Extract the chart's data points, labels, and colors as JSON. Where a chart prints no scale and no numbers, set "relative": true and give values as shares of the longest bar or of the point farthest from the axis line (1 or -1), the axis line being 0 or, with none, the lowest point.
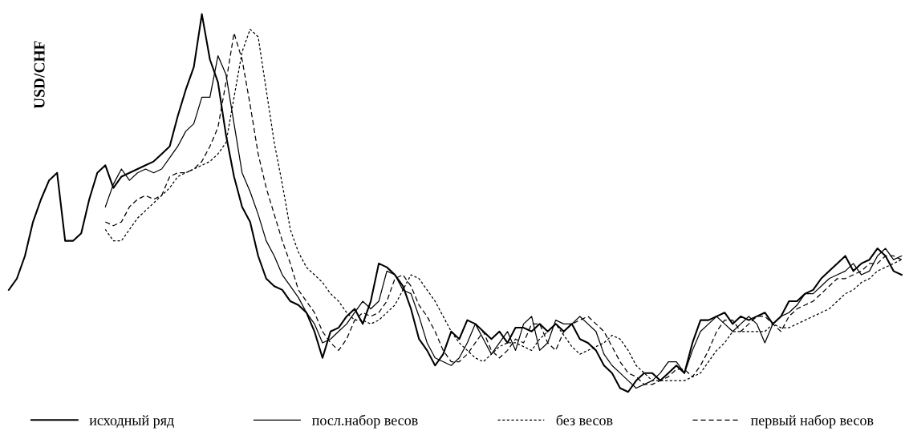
{
  "chart_data": {
    "type": "line",
    "relative": true,
    "ylabel": "USD/CHF",
    "legend": "bottom",
    "marker": "none",
    "categories": [
      null,
      null,
      null,
      null,
      null,
      null,
      null,
      null,
      null,
      null,
      null,
      null,
      null,
      null,
      null,
      null,
      null,
      null,
      null,
      null,
      null,
      null,
      null,
      null,
      null,
      null,
      null,
      null,
      null,
      null,
      null,
      null,
      null,
      null,
      null,
      null,
      null,
      null,
      null,
      null,
      null,
      null,
      null,
      null,
      null,
      null,
      null,
      null,
      null,
      null,
      null,
      null,
      null,
      null,
      null,
      null,
      null,
      null,
      null,
      null,
      null,
      null,
      null,
      null,
      null,
      null,
      null,
      null,
      null,
      null,
      null,
      null,
      null,
      null,
      null,
      null,
      null,
      null,
      null,
      null,
      null,
      null,
      null,
      null,
      null,
      null,
      null,
      null,
      null,
      null,
      null,
      null,
      null,
      null,
      null,
      null,
      null,
      null,
      null,
      null,
      null,
      null,
      null,
      null,
      null,
      null,
      null,
      null,
      null,
      null,
      null,
      null
    ],
    "series": [
      {
        "name": "исходный ряд",
        "color": "#000000",
        "line_style": "solid",
        "values": [
          0.27,
          0.3,
          0.36,
          0.45,
          0.51,
          0.56,
          0.58,
          0.4,
          0.4,
          0.42,
          0.51,
          0.58,
          0.6,
          0.54,
          0.57,
          0.58,
          0.59,
          0.6,
          0.61,
          0.63,
          0.65,
          0.73,
          0.8,
          0.86,
          1,
          0.88,
          0.82,
          0.68,
          0.57,
          0.49,
          0.45,
          0.36,
          0.3,
          0.28,
          0.27,
          0.24,
          0.23,
          0.21,
          0.16,
          0.09,
          0.16,
          0.17,
          0.2,
          0.22,
          0.18,
          0.24,
          0.34,
          0.33,
          0.31,
          0.28,
          0.22,
          0.14,
          0.11,
          0.07,
          0.1,
          0.16,
          0.14,
          0.19,
          0.18,
          0.16,
          0.14,
          0.16,
          0.13,
          0.17,
          0.17,
          0.16,
          0.18,
          0.16,
          0.18,
          0.16,
          0.18,
          0.14,
          0.13,
          0.11,
          0.07,
          0.05,
          0.01,
          0,
          0.03,
          0.05,
          0.05,
          0.03,
          0.05,
          0.07,
          0.05,
          0.13,
          0.19,
          0.19,
          0.2,
          0.21,
          0.18,
          0.2,
          0.19,
          0.2,
          0.21,
          0.18,
          0.2,
          0.24,
          0.24,
          0.26,
          0.27,
          0.3,
          0.32,
          0.34,
          0.36,
          0.32,
          0.34,
          0.35,
          0.38,
          0.36,
          0.32,
          0.31
        ]
      },
      {
        "name": "посл.набор весов",
        "color": "#000000",
        "line_style": "solid",
        "values": [
          null,
          null,
          null,
          null,
          null,
          null,
          null,
          null,
          null,
          null,
          null,
          null,
          0.49,
          0.55,
          0.59,
          0.56,
          0.58,
          0.59,
          0.58,
          0.59,
          0.62,
          0.65,
          0.69,
          0.71,
          0.78,
          0.78,
          0.89,
          0.84,
          0.71,
          0.58,
          0.53,
          0.47,
          0.4,
          0.36,
          0.31,
          0.28,
          0.25,
          0.21,
          0.18,
          0.13,
          0.14,
          0.16,
          0.18,
          0.21,
          0.24,
          0.22,
          0.24,
          0.32,
          0.31,
          0.27,
          0.26,
          0.2,
          0.13,
          0.09,
          0.08,
          0.07,
          0.09,
          0.13,
          0.18,
          0.14,
          0.1,
          0.13,
          0.16,
          0.11,
          0.18,
          0.2,
          0.11,
          0.13,
          0.19,
          0.18,
          0.18,
          0.2,
          0.18,
          0.16,
          0.1,
          0.07,
          0.05,
          0.03,
          0.01,
          0.02,
          0.03,
          0.05,
          0.08,
          0.08,
          0.05,
          0.11,
          0.16,
          0.18,
          0.2,
          0.18,
          0.16,
          0.18,
          0.2,
          0.18,
          0.13,
          0.18,
          0.2,
          0.21,
          0.23,
          0.26,
          0.26,
          0.28,
          0.3,
          0.31,
          0.32,
          0.34,
          0.31,
          0.32,
          0.36,
          0.38,
          0.35,
          0.36
        ]
      },
      {
        "name": "без весов",
        "color": "#000000",
        "line_style": "dotted",
        "values": [
          null,
          null,
          null,
          null,
          null,
          null,
          null,
          null,
          null,
          null,
          null,
          null,
          0.43,
          0.4,
          0.4,
          0.43,
          0.46,
          0.48,
          0.5,
          0.52,
          0.54,
          0.57,
          0.58,
          0.59,
          0.6,
          0.61,
          0.63,
          0.66,
          0.78,
          0.9,
          0.96,
          0.94,
          0.8,
          0.66,
          0.55,
          0.43,
          0.37,
          0.33,
          0.31,
          0.29,
          0.26,
          0.24,
          0.21,
          0.19,
          0.19,
          0.18,
          0.19,
          0.21,
          0.23,
          0.27,
          0.31,
          0.3,
          0.27,
          0.24,
          0.2,
          0.16,
          0.13,
          0.11,
          0.09,
          0.08,
          0.1,
          0.12,
          0.13,
          0.13,
          0.12,
          0.11,
          0.14,
          0.16,
          0.18,
          0.15,
          0.12,
          0.1,
          0.11,
          0.12,
          0.13,
          0.15,
          0.14,
          0.11,
          0.07,
          0.05,
          0.03,
          0.03,
          0.03,
          0.03,
          0.03,
          0.04,
          0.05,
          0.08,
          0.11,
          0.13,
          0.16,
          0.16,
          0.16,
          0.16,
          0.16,
          0.18,
          0.17,
          0.17,
          0.18,
          0.19,
          0.2,
          0.21,
          0.22,
          0.24,
          0.26,
          0.27,
          0.29,
          0.3,
          0.32,
          0.33,
          0.34,
          0.35
        ]
      },
      {
        "name": "первый набор весов",
        "color": "#000000",
        "line_style": "dashed",
        "values": [
          null,
          null,
          null,
          null,
          null,
          null,
          null,
          null,
          null,
          null,
          null,
          null,
          0.45,
          0.44,
          0.45,
          0.49,
          0.51,
          0.52,
          0.51,
          0.52,
          0.57,
          0.58,
          0.58,
          0.59,
          0.61,
          0.65,
          0.7,
          0.82,
          0.95,
          0.88,
          0.76,
          0.63,
          0.54,
          0.47,
          0.4,
          0.34,
          0.27,
          0.24,
          0.21,
          0.16,
          0.13,
          0.11,
          0.14,
          0.19,
          0.21,
          0.2,
          0.21,
          0.24,
          0.3,
          0.31,
          0.28,
          0.23,
          0.2,
          0.16,
          0.11,
          0.08,
          0.08,
          0.1,
          0.13,
          0.16,
          0.11,
          0.09,
          0.11,
          0.14,
          0.13,
          0.18,
          0.18,
          0.13,
          0.11,
          0.16,
          0.18,
          0.19,
          0.2,
          0.18,
          0.16,
          0.12,
          0.08,
          0.05,
          0.04,
          0.02,
          0.02,
          0.03,
          0.04,
          0.06,
          0.06,
          0.04,
          0.07,
          0.11,
          0.16,
          0.19,
          0.19,
          0.16,
          0.18,
          0.2,
          0.2,
          0.18,
          0.16,
          0.2,
          0.22,
          0.23,
          0.24,
          0.26,
          0.28,
          0.3,
          0.3,
          0.31,
          0.32,
          0.34,
          0.34,
          0.36,
          0.36,
          0.35
        ]
      }
    ]
  }
}
